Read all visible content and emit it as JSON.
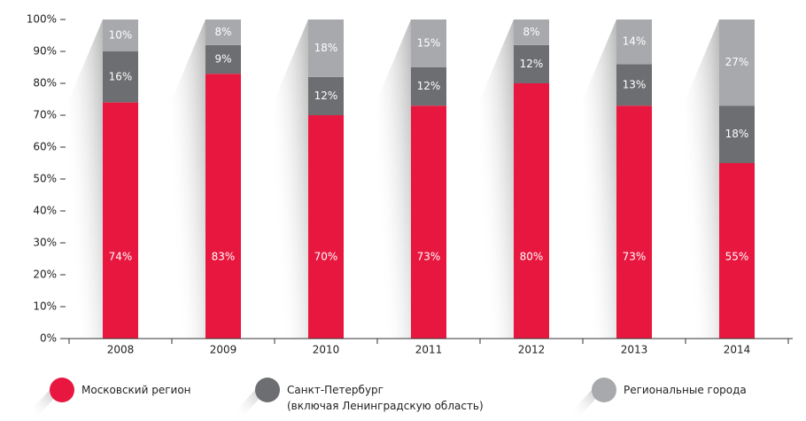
{
  "chart_data": {
    "type": "stacked_bar",
    "categories": [
      "2008",
      "2009",
      "2010",
      "2011",
      "2012",
      "2013",
      "2014"
    ],
    "series": [
      {
        "name": "Московский регион",
        "color": "#e8173f",
        "values": [
          74,
          83,
          70,
          73,
          80,
          73,
          55
        ],
        "value_labels": [
          "74%",
          "83%",
          "70%",
          "73%",
          "80%",
          "73%",
          "55%"
        ]
      },
      {
        "name": "Санкт-Петербург\n(включая Ленинградскую область)",
        "color": "#6d6e71",
        "values": [
          16,
          9,
          12,
          12,
          12,
          13,
          18
        ],
        "value_labels": [
          "16%",
          "9%",
          "12%",
          "12%",
          "12%",
          "13%",
          "18%"
        ]
      },
      {
        "name": "Региональные города",
        "color": "#a7a9ac",
        "values": [
          10,
          8,
          18,
          15,
          8,
          14,
          27
        ],
        "value_labels": [
          "10%",
          "8%",
          "18%",
          "15%",
          "8%",
          "14%",
          "27%"
        ]
      }
    ],
    "ylim": [
      0,
      100
    ],
    "yticks": [
      {
        "value": 0,
        "label": "0%"
      },
      {
        "value": 10,
        "label": "10%"
      },
      {
        "value": 20,
        "label": "20%"
      },
      {
        "value": 30,
        "label": "30%"
      },
      {
        "value": 40,
        "label": "40%"
      },
      {
        "value": 50,
        "label": "50%"
      },
      {
        "value": 60,
        "label": "60%"
      },
      {
        "value": 70,
        "label": "70%"
      },
      {
        "value": 80,
        "label": "80%"
      },
      {
        "value": 90,
        "label": "90%"
      },
      {
        "value": 100,
        "label": "100%"
      }
    ]
  }
}
